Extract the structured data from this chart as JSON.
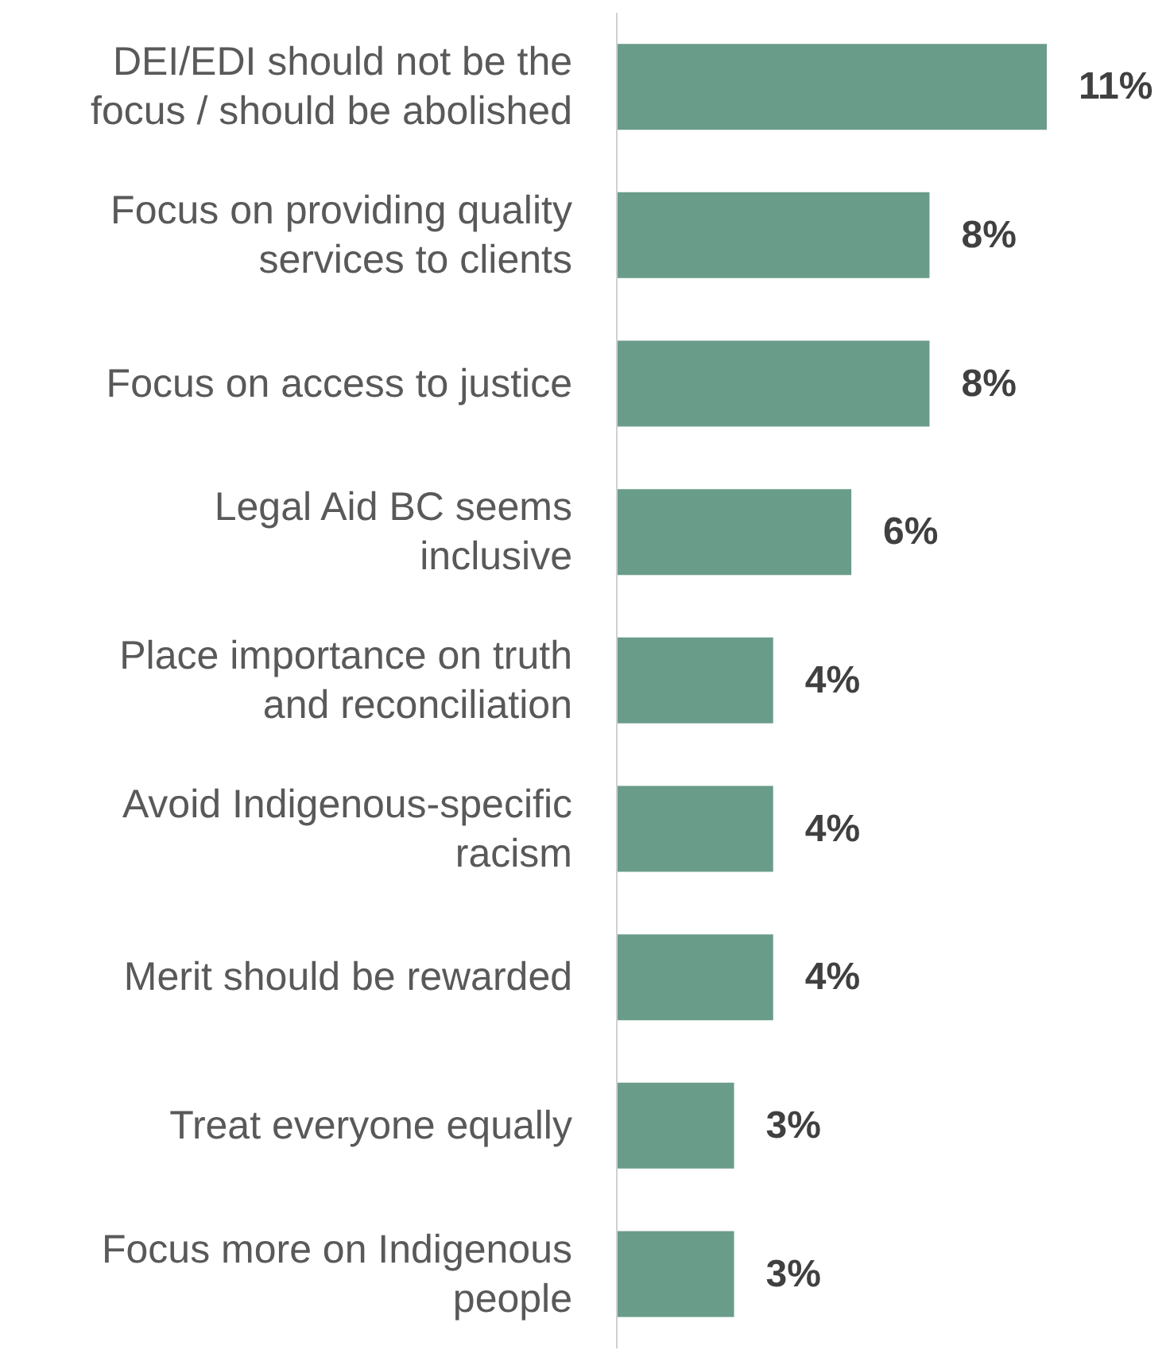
{
  "chart_data": {
    "type": "bar",
    "orientation": "horizontal",
    "categories": [
      "DEI/EDI should not be the focus / should be abolished",
      "Focus on providing quality services to clients",
      "Focus on access to justice",
      "Legal Aid BC seems inclusive",
      "Place importance on truth and reconciliation",
      "Avoid Indigenous-specific racism",
      "Merit should be rewarded",
      "Treat everyone equally",
      "Focus more on Indigenous people"
    ],
    "values": [
      11,
      8,
      8,
      6,
      4,
      4,
      4,
      3,
      3
    ],
    "value_labels": [
      "11%",
      "8%",
      "8%",
      "6%",
      "4%",
      "4%",
      "4%",
      "3%",
      "3%"
    ],
    "color": "#6a9c8a"
  }
}
